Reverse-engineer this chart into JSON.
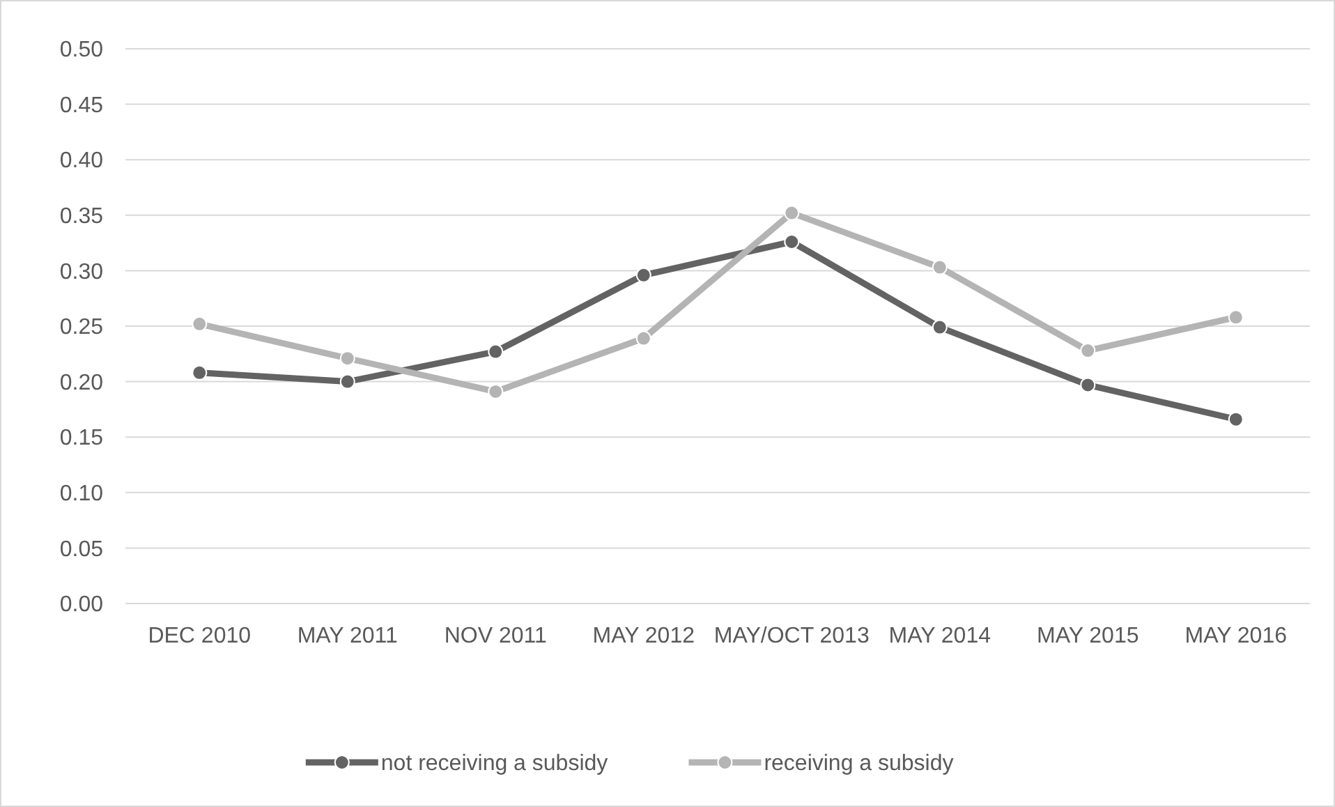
{
  "chart_data": {
    "type": "line",
    "categories": [
      "DEC 2010",
      "MAY 2011",
      "NOV 2011",
      "MAY 2012",
      "MAY/OCT 2013",
      "MAY 2014",
      "MAY 2015",
      "MAY 2016"
    ],
    "series": [
      {
        "name": "not receiving a subsidy",
        "color": "#636363",
        "values": [
          0.208,
          0.2,
          0.227,
          0.296,
          0.326,
          0.249,
          0.197,
          0.166
        ]
      },
      {
        "name": "receiving a subsidy",
        "color": "#b4b4b4",
        "values": [
          0.252,
          0.221,
          0.191,
          0.239,
          0.352,
          0.303,
          0.228,
          0.258
        ]
      }
    ],
    "ylim": [
      0,
      0.5
    ],
    "yticks": [
      {
        "value": 0,
        "label": "0.00"
      },
      {
        "value": 0.05,
        "label": "0.05"
      },
      {
        "value": 0.1,
        "label": "0.10"
      },
      {
        "value": 0.15,
        "label": "0.15"
      },
      {
        "value": 0.2,
        "label": "0.20"
      },
      {
        "value": 0.25,
        "label": "0.25"
      },
      {
        "value": 0.3,
        "label": "0.30"
      },
      {
        "value": 0.35,
        "label": "0.35"
      },
      {
        "value": 0.4,
        "label": "0.40"
      },
      {
        "value": 0.45,
        "label": "0.45"
      },
      {
        "value": 0.5,
        "label": "0.50"
      }
    ],
    "grid": "y",
    "legend": "bottom",
    "marker": "circle",
    "line_style": "solid"
  }
}
